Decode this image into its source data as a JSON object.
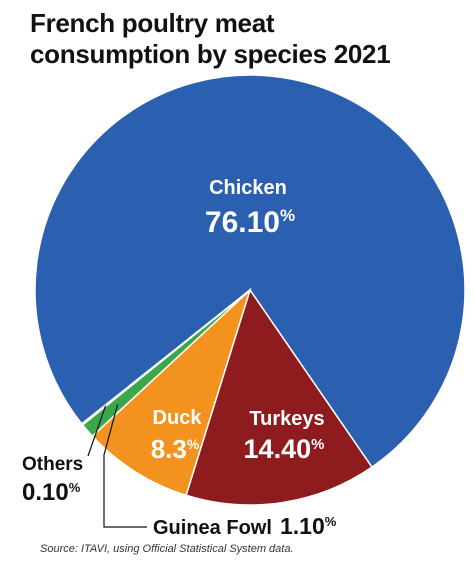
{
  "chart_data": {
    "type": "pie",
    "title_lines": [
      "French poultry meat",
      "consumption by species 2021"
    ],
    "source": "Source: ITAVI, using Official Statistical System data.",
    "slices": [
      {
        "name": "Chicken",
        "value": 76.1,
        "label": "76.10",
        "pct": "%",
        "color": "#2b5fb0",
        "label_color": "#ffffff"
      },
      {
        "name": "Turkeys",
        "value": 14.4,
        "label": "14.40",
        "pct": "%",
        "color": "#8e1b1e",
        "label_color": "#ffffff"
      },
      {
        "name": "Duck",
        "value": 8.3,
        "label": "8.3",
        "pct": "%",
        "color": "#f3921e",
        "label_color": "#ffffff"
      },
      {
        "name": "Guinea Fowl",
        "value": 1.1,
        "label": "1.10",
        "pct": "%",
        "color": "#3aa84a",
        "label_color": "#111111"
      },
      {
        "name": "Others",
        "value": 0.1,
        "label": "0.10",
        "pct": "%",
        "color": "#d9d9d9",
        "label_color": "#111111"
      }
    ]
  }
}
